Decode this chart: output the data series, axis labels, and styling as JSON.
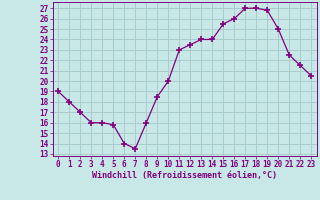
{
  "x": [
    0,
    1,
    2,
    3,
    4,
    5,
    6,
    7,
    8,
    9,
    10,
    11,
    12,
    13,
    14,
    15,
    16,
    17,
    18,
    19,
    20,
    21,
    22,
    23
  ],
  "y": [
    19,
    18,
    17,
    16,
    16,
    15.8,
    14,
    13.5,
    16,
    18.5,
    20,
    23,
    23.5,
    24,
    24,
    25.5,
    26,
    27,
    27,
    26.8,
    25,
    22.5,
    21.5,
    20.5
  ],
  "line_color": "#800080",
  "marker": "+",
  "marker_size": 4,
  "marker_lw": 1.2,
  "bg_color": "#c8e8e8",
  "grid_color": "#aacccc",
  "xlabel": "Windchill (Refroidissement éolien,°C)",
  "ylabel_ticks": [
    13,
    14,
    15,
    16,
    17,
    18,
    19,
    20,
    21,
    22,
    23,
    24,
    25,
    26,
    27
  ],
  "ylim": [
    12.8,
    27.6
  ],
  "xlim": [
    -0.5,
    23.5
  ],
  "tick_fontsize": 5.5,
  "xlabel_fontsize": 6.0
}
